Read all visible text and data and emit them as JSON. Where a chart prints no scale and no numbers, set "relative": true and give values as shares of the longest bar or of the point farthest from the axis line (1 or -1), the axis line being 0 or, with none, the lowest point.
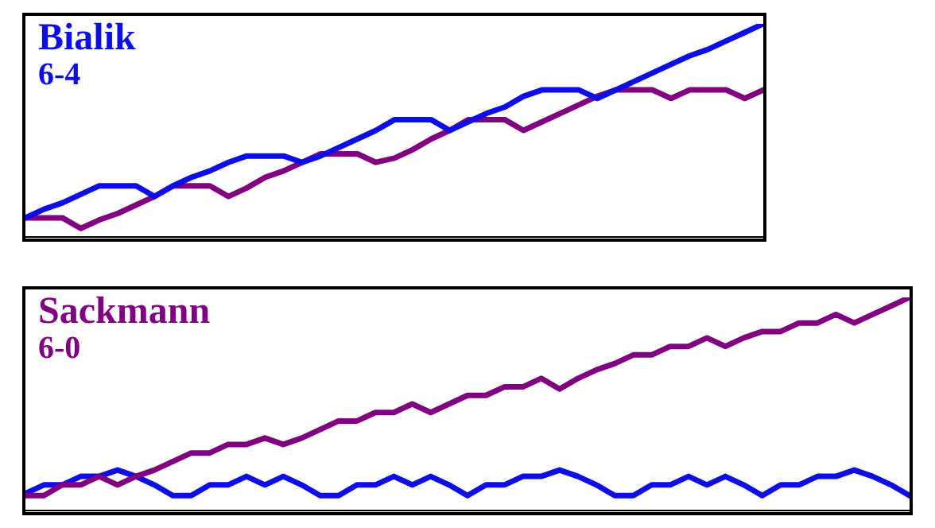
{
  "chart_data": [
    {
      "type": "line",
      "title": "Bialik",
      "subtitle": "6-4",
      "relative": true,
      "legend": false,
      "line_style": "solid",
      "categories": [
        null,
        null,
        null,
        null,
        null,
        null,
        null,
        null,
        null,
        null,
        null,
        null,
        null,
        null,
        null,
        null,
        null,
        null,
        null,
        null,
        null,
        null,
        null,
        null,
        null,
        null,
        null,
        null,
        null,
        null,
        null,
        null,
        null,
        null,
        null,
        null,
        null,
        null,
        null,
        null,
        null
      ],
      "series": [
        {
          "color": "#0d0de6",
          "values": [
            0.09,
            0.13,
            0.16,
            0.2,
            0.24,
            0.24,
            0.24,
            0.19,
            0.24,
            0.28,
            0.31,
            0.35,
            0.38,
            0.38,
            0.38,
            0.35,
            0.38,
            0.42,
            0.46,
            0.5,
            0.55,
            0.55,
            0.55,
            0.5,
            0.54,
            0.58,
            0.61,
            0.66,
            0.69,
            0.69,
            0.69,
            0.65,
            0.69,
            0.73,
            0.77,
            0.81,
            0.85,
            0.88,
            0.92,
            0.96,
            1
          ]
        },
        {
          "color": "#800080",
          "values": [
            0.09,
            0.09,
            0.09,
            0.04,
            0.08,
            0.11,
            0.15,
            0.19,
            0.24,
            0.24,
            0.24,
            0.19,
            0.23,
            0.28,
            0.31,
            0.35,
            0.39,
            0.39,
            0.39,
            0.35,
            0.37,
            0.41,
            0.46,
            0.5,
            0.55,
            0.55,
            0.55,
            0.5,
            0.54,
            0.58,
            0.62,
            0.66,
            0.69,
            0.69,
            0.69,
            0.65,
            0.69,
            0.69,
            0.69,
            0.65,
            0.69
          ]
        }
      ]
    },
    {
      "type": "line",
      "title": "Sackmann",
      "subtitle": "6-0",
      "relative": true,
      "legend": false,
      "line_style": "solid",
      "categories": [
        null,
        null,
        null,
        null,
        null,
        null,
        null,
        null,
        null,
        null,
        null,
        null,
        null,
        null,
        null,
        null,
        null,
        null,
        null,
        null,
        null,
        null,
        null,
        null,
        null,
        null,
        null,
        null,
        null,
        null,
        null,
        null,
        null,
        null,
        null,
        null,
        null,
        null,
        null,
        null,
        null,
        null,
        null,
        null,
        null,
        null,
        null,
        null,
        null
      ],
      "series": [
        {
          "color": "#800080",
          "values": [
            0.07,
            0.07,
            0.12,
            0.12,
            0.16,
            0.12,
            0.16,
            0.19,
            0.23,
            0.27,
            0.27,
            0.31,
            0.31,
            0.34,
            0.31,
            0.34,
            0.38,
            0.42,
            0.42,
            0.46,
            0.46,
            0.5,
            0.46,
            0.5,
            0.54,
            0.54,
            0.58,
            0.58,
            0.62,
            0.57,
            0.62,
            0.66,
            0.69,
            0.73,
            0.73,
            0.77,
            0.77,
            0.81,
            0.77,
            0.81,
            0.84,
            0.84,
            0.88,
            0.88,
            0.92,
            0.88,
            0.92,
            0.96,
            1
          ]
        },
        {
          "color": "#0d0de6",
          "values": [
            0.08,
            0.12,
            0.12,
            0.16,
            0.16,
            0.19,
            0.16,
            0.12,
            0.07,
            0.07,
            0.12,
            0.12,
            0.16,
            0.12,
            0.16,
            0.12,
            0.07,
            0.07,
            0.12,
            0.12,
            0.16,
            0.12,
            0.16,
            0.12,
            0.07,
            0.12,
            0.12,
            0.16,
            0.16,
            0.19,
            0.16,
            0.12,
            0.07,
            0.07,
            0.12,
            0.12,
            0.16,
            0.12,
            0.16,
            0.12,
            0.07,
            0.12,
            0.12,
            0.16,
            0.16,
            0.19,
            0.16,
            0.12,
            0.07
          ]
        }
      ]
    }
  ]
}
